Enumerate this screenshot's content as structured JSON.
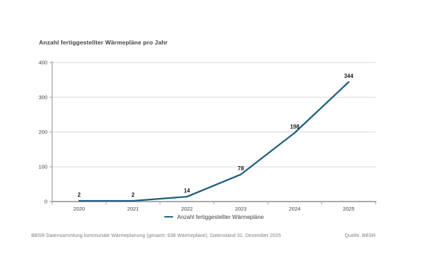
{
  "chart": {
    "title": "Anzahl fertiggestellter Wärmepläne pro Jahr"
  },
  "chart_data": {
    "type": "line",
    "categories": [
      "2020",
      "2021",
      "2022",
      "2023",
      "2024",
      "2025"
    ],
    "series": [
      {
        "name": "Anzahl fertiggestellter Wärmepläne",
        "values": [
          2,
          2,
          14,
          78,
          198,
          344
        ]
      }
    ],
    "title": "Anzahl fertiggestellter Wärmepläne pro Jahr",
    "xlabel": "",
    "ylabel": "",
    "ylim": [
      0,
      400
    ],
    "yticks": [
      0,
      100,
      200,
      300,
      400
    ],
    "grid": true,
    "data_labels": true,
    "legend_position": "bottom"
  },
  "legend": {
    "label": "Anzahl fertiggestellter Wärmepläne"
  },
  "footer": {
    "note": "BBSR Datensammlung kommunale Wärmeplanung (gesamt: 638 Wärmepläne), Datenstand 31. Dezember 2025",
    "source": "Quelle: BBSR"
  },
  "colors": {
    "line": "#1e5f7e",
    "grid": "#d9d9d9",
    "axis": "#a9a9a9",
    "tick_text": "#404040",
    "data_label_text": "#1a1a1a",
    "title_text": "#404040",
    "footer_text": "#7f7f7f",
    "background": "#ffffff"
  }
}
